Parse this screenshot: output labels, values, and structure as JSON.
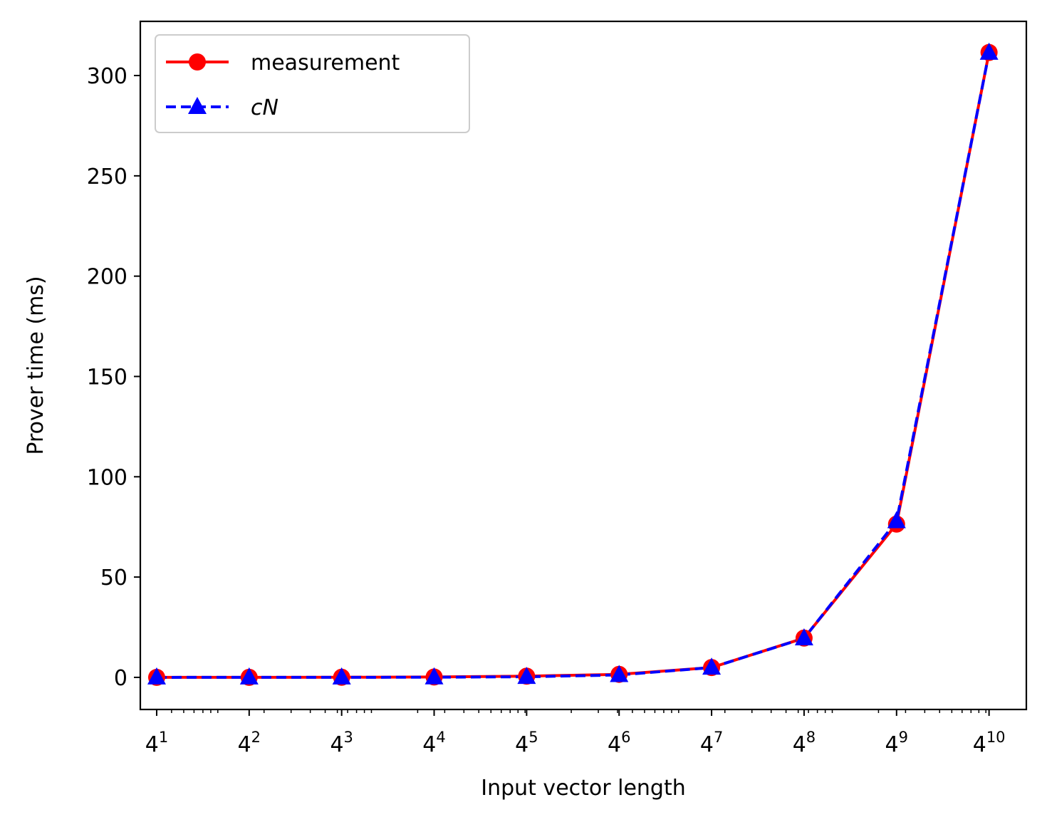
{
  "chart_data": {
    "type": "line",
    "xlabel": "Input vector length",
    "ylabel": "Prover time (ms)",
    "x_scale": "log",
    "x_base": 4,
    "x_tick_exponents": [
      "1",
      "2",
      "3",
      "4",
      "5",
      "6",
      "7",
      "8",
      "9",
      "10"
    ],
    "x": [
      4,
      16,
      64,
      256,
      1024,
      4096,
      16384,
      65536,
      262144,
      1048576
    ],
    "xlim": [
      3.13,
      1834000
    ],
    "ylim": [
      -16,
      327
    ],
    "yticks": [
      0,
      50,
      100,
      150,
      200,
      250,
      300
    ],
    "grid": false,
    "legend_position": "top-left",
    "series": [
      {
        "name": "measurement",
        "color": "#ff0000",
        "linestyle": "solid",
        "marker": "circle",
        "values": [
          0.01,
          0.02,
          0.06,
          0.19,
          0.6,
          1.5,
          4.9,
          19.6,
          76.4,
          311.5
        ]
      },
      {
        "name": "cN",
        "color": "#0000ff",
        "linestyle": "dashed",
        "marker": "triangle",
        "values": [
          0.0012,
          0.0048,
          0.019,
          0.076,
          0.3,
          1.2,
          4.9,
          19.5,
          77.9,
          311.4
        ]
      }
    ]
  }
}
